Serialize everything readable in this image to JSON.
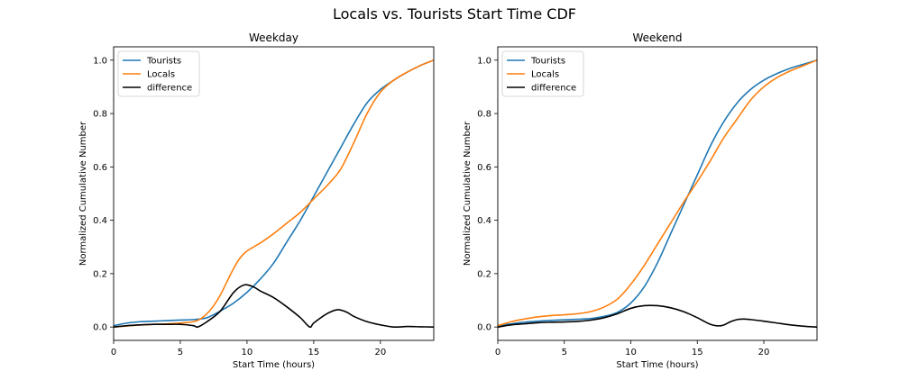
{
  "figure": {
    "title": "Locals vs. Tourists Start Time CDF"
  },
  "colors": {
    "tourists": "#1f77b4",
    "locals": "#ff7f0e",
    "difference": "#000000"
  },
  "chart_data": [
    {
      "type": "line",
      "title": "Weekday",
      "xlabel": "Start Time (hours)",
      "ylabel": "Normalized Cumulative Number",
      "xlim": [
        0,
        24
      ],
      "ylim": [
        -0.05,
        1.05
      ],
      "xticks": [
        0,
        5,
        10,
        15,
        20
      ],
      "yticks": [
        0.0,
        0.2,
        0.4,
        0.6,
        0.8,
        1.0
      ],
      "ytick_labels": [
        "0.0",
        "0.2",
        "0.4",
        "0.6",
        "0.8",
        "1.0"
      ],
      "legend": "top-left",
      "grid": false,
      "series": [
        {
          "name": "Tourists",
          "color": "#1f77b4",
          "x": [
            0,
            1,
            2,
            3,
            4,
            5,
            6,
            7,
            8,
            9,
            10,
            11,
            12,
            13,
            14,
            15,
            16,
            17,
            18,
            19,
            20,
            21,
            22,
            23,
            24
          ],
          "y": [
            0.005,
            0.015,
            0.02,
            0.022,
            0.024,
            0.026,
            0.028,
            0.035,
            0.06,
            0.09,
            0.13,
            0.18,
            0.24,
            0.32,
            0.4,
            0.49,
            0.58,
            0.67,
            0.76,
            0.84,
            0.89,
            0.925,
            0.955,
            0.98,
            1.0
          ]
        },
        {
          "name": "Locals",
          "color": "#ff7f0e",
          "x": [
            0,
            1,
            2,
            3,
            4,
            5,
            6,
            6.5,
            7,
            7.5,
            8,
            8.5,
            9,
            9.5,
            10,
            11,
            12,
            13,
            14,
            15,
            16,
            17,
            18,
            19,
            20,
            21,
            22,
            23,
            24
          ],
          "y": [
            0.0,
            0.004,
            0.008,
            0.01,
            0.012,
            0.015,
            0.02,
            0.03,
            0.05,
            0.08,
            0.12,
            0.17,
            0.22,
            0.26,
            0.285,
            0.315,
            0.35,
            0.39,
            0.43,
            0.48,
            0.53,
            0.59,
            0.69,
            0.8,
            0.88,
            0.925,
            0.955,
            0.98,
            1.0
          ]
        },
        {
          "name": "difference",
          "color": "#000000",
          "x": [
            0,
            1,
            2,
            3,
            4,
            5,
            6,
            6.3,
            7,
            8,
            9,
            9.8,
            10.5,
            11,
            12,
            13,
            14,
            14.7,
            15,
            16,
            16.8,
            17.5,
            18,
            19,
            20,
            21,
            22,
            23,
            24
          ],
          "y": [
            0.0,
            0.005,
            0.008,
            0.01,
            0.01,
            0.01,
            0.005,
            0.0,
            0.02,
            0.06,
            0.13,
            0.158,
            0.15,
            0.135,
            0.11,
            0.075,
            0.035,
            0.0,
            0.015,
            0.05,
            0.065,
            0.055,
            0.04,
            0.02,
            0.008,
            0.0,
            0.002,
            0.001,
            0.0
          ]
        }
      ]
    },
    {
      "type": "line",
      "title": "Weekend",
      "xlabel": "Start Time (hours)",
      "ylabel": "Normalized Cumulative Number",
      "xlim": [
        0,
        24
      ],
      "ylim": [
        -0.05,
        1.05
      ],
      "xticks": [
        0,
        5,
        10,
        15,
        20
      ],
      "yticks": [
        0.0,
        0.2,
        0.4,
        0.6,
        0.8,
        1.0
      ],
      "ytick_labels": [
        "0.0",
        "0.2",
        "0.4",
        "0.6",
        "0.8",
        "1.0"
      ],
      "legend": "top-left",
      "grid": false,
      "series": [
        {
          "name": "Tourists",
          "color": "#1f77b4",
          "x": [
            0,
            1,
            2,
            3,
            4,
            5,
            6,
            7,
            8,
            9,
            10,
            11,
            12,
            13,
            14,
            15,
            16,
            17,
            18,
            19,
            20,
            21,
            22,
            23,
            24
          ],
          "y": [
            0.005,
            0.012,
            0.018,
            0.022,
            0.025,
            0.027,
            0.029,
            0.032,
            0.04,
            0.055,
            0.09,
            0.15,
            0.24,
            0.35,
            0.46,
            0.57,
            0.68,
            0.77,
            0.84,
            0.89,
            0.925,
            0.95,
            0.97,
            0.985,
            1.0
          ]
        },
        {
          "name": "Locals",
          "color": "#ff7f0e",
          "x": [
            0,
            1,
            2,
            3,
            4,
            5,
            6,
            7,
            8,
            9,
            10,
            11,
            12,
            13,
            14,
            15,
            16,
            17,
            18,
            19,
            20,
            21,
            22,
            23,
            24
          ],
          "y": [
            0.005,
            0.02,
            0.03,
            0.038,
            0.043,
            0.046,
            0.05,
            0.058,
            0.075,
            0.105,
            0.16,
            0.23,
            0.31,
            0.39,
            0.47,
            0.545,
            0.625,
            0.71,
            0.78,
            0.85,
            0.9,
            0.935,
            0.96,
            0.98,
            1.0
          ]
        },
        {
          "name": "difference",
          "color": "#000000",
          "x": [
            0,
            1,
            2,
            3,
            4,
            5,
            6,
            7,
            8,
            9,
            10,
            11,
            12,
            13,
            14,
            15,
            16,
            16.8,
            17.5,
            18,
            18.5,
            19,
            20,
            21,
            22,
            23,
            24
          ],
          "y": [
            0.0,
            0.008,
            0.012,
            0.016,
            0.018,
            0.019,
            0.021,
            0.026,
            0.035,
            0.05,
            0.07,
            0.08,
            0.08,
            0.072,
            0.057,
            0.035,
            0.01,
            0.005,
            0.02,
            0.028,
            0.03,
            0.028,
            0.022,
            0.015,
            0.008,
            0.003,
            0.0
          ]
        }
      ]
    }
  ]
}
